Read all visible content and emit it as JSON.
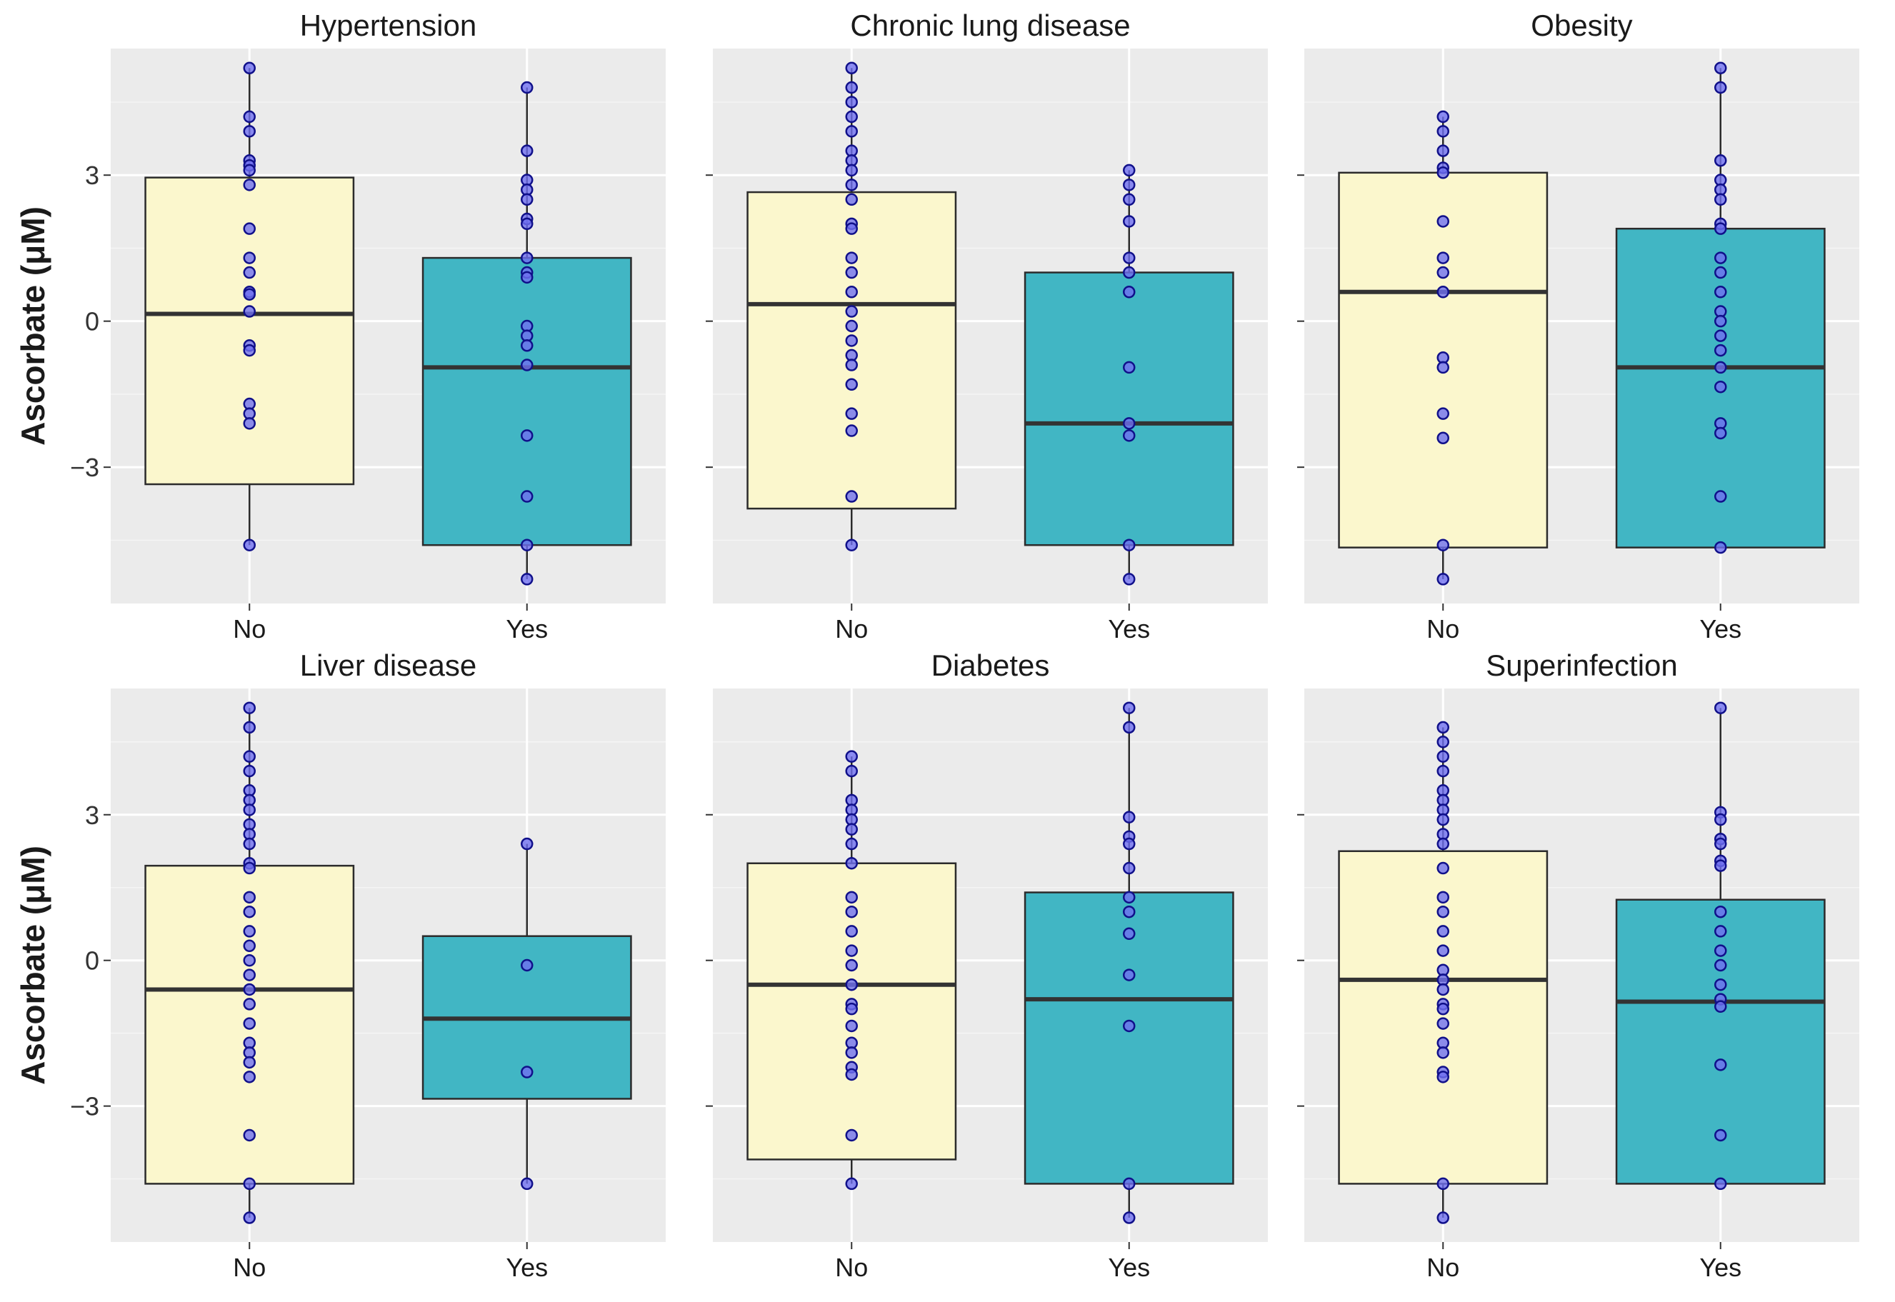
{
  "colors": {
    "panel_bg": "#ebebeb",
    "grid_major": "#ffffff",
    "grid_minor": "#f5f5f5",
    "box_no": "#fbf7cd",
    "box_yes": "#41b6c4",
    "box_stroke": "#2b2b2b",
    "median": "#333333",
    "point_outer": "#10108a",
    "point_inner": "#6f6ff0"
  },
  "chart_data": {
    "type": "boxplot",
    "layout": "3 columns x 2 rows, shared y axis",
    "ylabel": "Ascorbate (μM)",
    "ylim": [
      -5.8,
      5.6
    ],
    "yticks": [
      -3,
      0,
      3
    ],
    "ytick_labels": [
      "−3",
      "0",
      "3"
    ],
    "categories": [
      "No",
      "Yes"
    ],
    "panels": [
      {
        "title": "Hypertension",
        "boxes": [
          {
            "group": "No",
            "whisker_low": -4.6,
            "q1": -3.35,
            "median": 0.15,
            "q3": 2.95,
            "whisker_high": 5.2,
            "points": [
              5.2,
              4.2,
              3.9,
              3.3,
              3.2,
              3.1,
              2.8,
              1.9,
              1.3,
              1.0,
              0.6,
              0.55,
              0.2,
              -0.5,
              -0.6,
              -1.7,
              -1.9,
              -2.1,
              -4.6
            ]
          },
          {
            "group": "Yes",
            "whisker_low": -5.3,
            "q1": -4.6,
            "median": -0.95,
            "q3": 1.3,
            "whisker_high": 4.8,
            "points": [
              4.8,
              3.5,
              2.9,
              2.7,
              2.5,
              2.1,
              2.0,
              1.3,
              1.0,
              0.9,
              -0.1,
              -0.3,
              -0.5,
              -0.9,
              -2.35,
              -3.6,
              -4.6,
              -5.3
            ]
          }
        ]
      },
      {
        "title": "Chronic lung disease",
        "boxes": [
          {
            "group": "No",
            "whisker_low": -4.6,
            "q1": -3.85,
            "median": 0.35,
            "q3": 2.65,
            "whisker_high": 5.2,
            "points": [
              5.2,
              4.8,
              4.5,
              4.2,
              3.9,
              3.5,
              3.3,
              3.1,
              2.8,
              2.5,
              2.0,
              1.9,
              1.3,
              1.0,
              0.6,
              0.2,
              -0.1,
              -0.4,
              -0.7,
              -0.9,
              -1.3,
              -1.9,
              -2.25,
              -3.6,
              -4.6
            ]
          },
          {
            "group": "Yes",
            "whisker_low": -5.3,
            "q1": -4.6,
            "median": -2.1,
            "q3": 1.0,
            "whisker_high": 3.1,
            "points": [
              3.1,
              2.8,
              2.5,
              2.05,
              1.3,
              1.0,
              0.6,
              -0.95,
              -2.1,
              -2.35,
              -4.6,
              -5.3
            ]
          }
        ]
      },
      {
        "title": "Obesity",
        "boxes": [
          {
            "group": "No",
            "whisker_low": -5.3,
            "q1": -4.65,
            "median": 0.6,
            "q3": 3.05,
            "whisker_high": 4.2,
            "points": [
              4.2,
              3.9,
              3.5,
              3.15,
              3.05,
              2.05,
              1.3,
              1.0,
              0.6,
              -0.75,
              -0.95,
              -1.9,
              -2.4,
              -4.6,
              -5.3
            ]
          },
          {
            "group": "Yes",
            "whisker_low": -4.65,
            "q1": -4.65,
            "median": -0.95,
            "q3": 1.9,
            "whisker_high": 5.2,
            "points": [
              5.2,
              4.8,
              3.3,
              2.9,
              2.7,
              2.5,
              2.0,
              1.9,
              1.3,
              1.0,
              0.6,
              0.2,
              0.0,
              -0.3,
              -0.6,
              -0.95,
              -1.35,
              -2.1,
              -2.3,
              -3.6,
              -4.65
            ]
          }
        ]
      },
      {
        "title": "Liver disease",
        "boxes": [
          {
            "group": "No",
            "whisker_low": -5.3,
            "q1": -4.6,
            "median": -0.6,
            "q3": 1.95,
            "whisker_high": 5.2,
            "points": [
              5.2,
              4.8,
              4.2,
              3.9,
              3.5,
              3.3,
              3.1,
              2.8,
              2.6,
              2.4,
              2.0,
              1.9,
              1.3,
              1.0,
              0.6,
              0.3,
              0.0,
              -0.3,
              -0.6,
              -0.9,
              -1.3,
              -1.7,
              -1.9,
              -2.1,
              -2.4,
              -3.6,
              -4.6,
              -5.3
            ]
          },
          {
            "group": "Yes",
            "whisker_low": -4.6,
            "q1": -2.85,
            "median": -1.2,
            "q3": 0.5,
            "whisker_high": 2.4,
            "points": [
              2.4,
              -0.1,
              -2.3,
              -4.6
            ]
          }
        ]
      },
      {
        "title": "Diabetes",
        "boxes": [
          {
            "group": "No",
            "whisker_low": -4.6,
            "q1": -4.1,
            "median": -0.5,
            "q3": 2.0,
            "whisker_high": 4.2,
            "points": [
              4.2,
              3.9,
              3.3,
              3.1,
              2.9,
              2.7,
              2.4,
              2.0,
              1.3,
              1.0,
              0.6,
              0.2,
              -0.1,
              -0.5,
              -0.9,
              -1.0,
              -1.35,
              -1.7,
              -1.9,
              -2.2,
              -2.35,
              -3.6,
              -4.6
            ]
          },
          {
            "group": "Yes",
            "whisker_low": -5.3,
            "q1": -4.6,
            "median": -0.8,
            "q3": 1.4,
            "whisker_high": 5.2,
            "points": [
              5.2,
              4.8,
              2.95,
              2.55,
              2.4,
              1.9,
              1.3,
              1.0,
              0.55,
              -0.3,
              -1.35,
              -4.6,
              -5.3
            ]
          }
        ]
      },
      {
        "title": "Superinfection",
        "boxes": [
          {
            "group": "No",
            "whisker_low": -5.3,
            "q1": -4.6,
            "median": -0.4,
            "q3": 2.25,
            "whisker_high": 4.8,
            "points": [
              4.8,
              4.5,
              4.2,
              3.9,
              3.5,
              3.3,
              3.1,
              2.9,
              2.6,
              2.4,
              1.9,
              1.3,
              1.0,
              0.6,
              0.2,
              -0.2,
              -0.4,
              -0.6,
              -0.9,
              -1.0,
              -1.3,
              -1.7,
              -1.9,
              -2.3,
              -2.4,
              -4.6,
              -5.3
            ]
          },
          {
            "group": "Yes",
            "whisker_low": -4.6,
            "q1": -4.6,
            "median": -0.85,
            "q3": 1.25,
            "whisker_high": 5.2,
            "points": [
              5.2,
              3.05,
              2.9,
              2.5,
              2.4,
              2.05,
              1.95,
              1.0,
              0.6,
              0.2,
              -0.1,
              -0.5,
              -0.8,
              -0.95,
              -2.15,
              -3.6,
              -4.6
            ]
          }
        ]
      }
    ]
  }
}
